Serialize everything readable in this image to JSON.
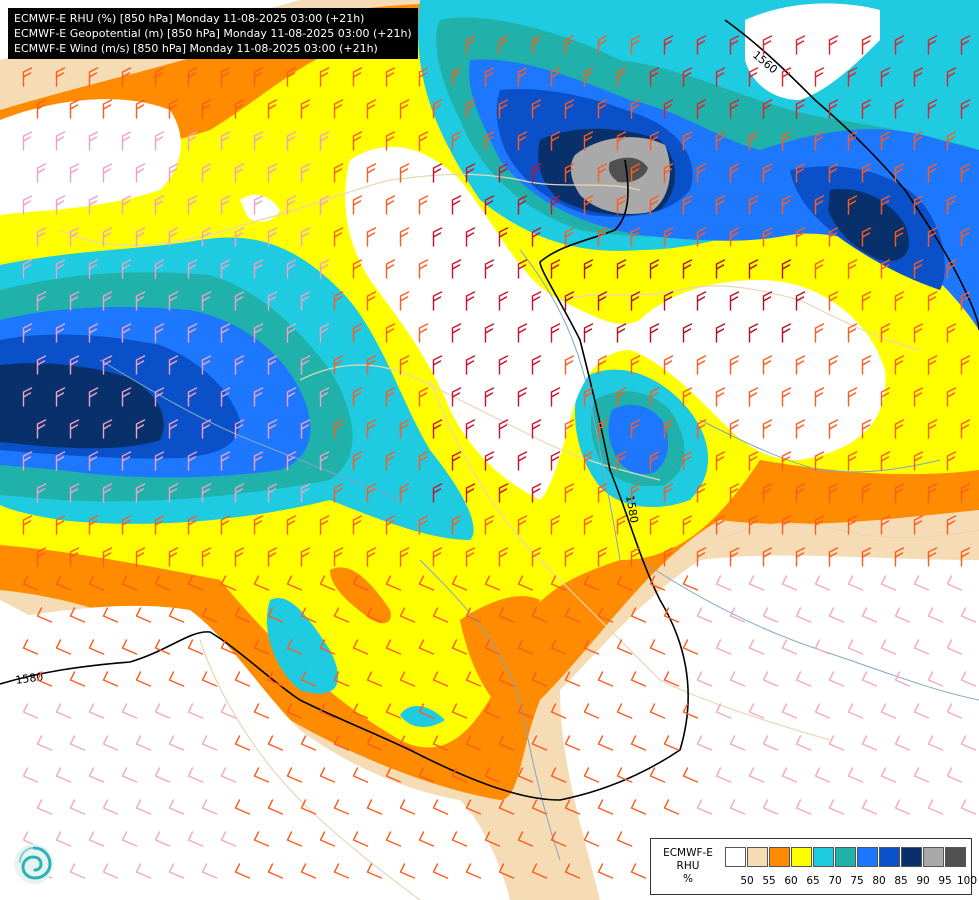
{
  "header": {
    "lines": [
      "ECMWF-E RHU (%) [850 hPa] Monday 11-08-2025 03:00 (+21h)",
      "ECMWF-E Geopotential (m) [850 hPa] Monday 11-08-2025 03:00 (+21h)",
      "ECMWF-E Wind (m/s) [850 hPa] Monday 11-08-2025 03:00 (+21h)"
    ]
  },
  "contour_labels": [
    "1560",
    "1580",
    "1580"
  ],
  "legend": {
    "model": "ECMWF-E",
    "variable": "RHU",
    "unit": "%",
    "levels": [
      "50",
      "55",
      "60",
      "65",
      "70",
      "75",
      "80",
      "85",
      "90",
      "95",
      "100"
    ],
    "colors": [
      "#ffffff",
      "#f5dcb4",
      "#ff8c00",
      "#ffff00",
      "#1ecbe1",
      "#20b2aa",
      "#1e78ff",
      "#0a50c8",
      "#08306b",
      "#a9a9a9",
      "#505050"
    ]
  },
  "logo": {
    "icon": "ecmwf-swirl-logo"
  }
}
